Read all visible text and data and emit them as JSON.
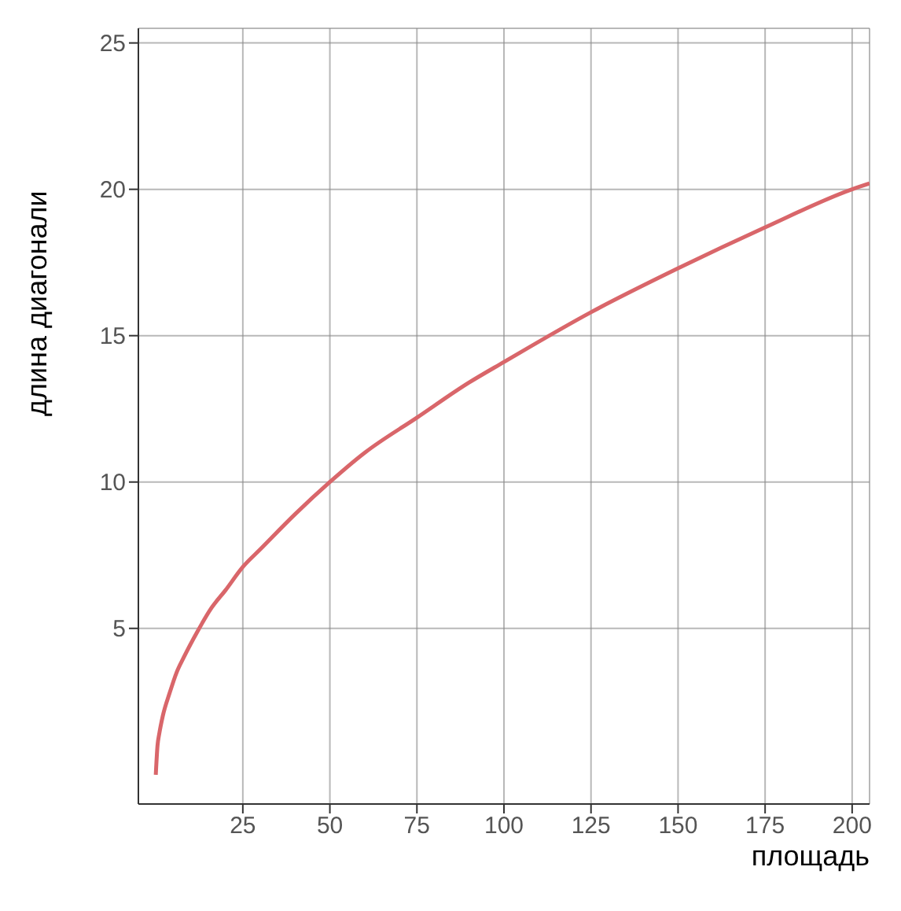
{
  "chart_data": {
    "type": "line",
    "xlabel": "площадь",
    "ylabel": "длина диагонали",
    "x": [
      0,
      0.5,
      1,
      2,
      4,
      6,
      8,
      12,
      16,
      20,
      25,
      30,
      40,
      50,
      60,
      75,
      90,
      100,
      125,
      150,
      175,
      200,
      205
    ],
    "series": [
      {
        "color": "#d9666a",
        "values": [
          0,
          1,
          1.4,
          2,
          2.8,
          3.5,
          4,
          4.9,
          5.7,
          6.3,
          7.1,
          7.7,
          8.9,
          10,
          11,
          12.2,
          13.4,
          14.1,
          15.8,
          17.3,
          18.7,
          20,
          20.2
        ]
      }
    ],
    "xlim": [
      -5,
      205
    ],
    "ylim": [
      -1,
      25.5
    ],
    "xticks": [
      25,
      50,
      75,
      100,
      125,
      150,
      175,
      200
    ],
    "yticks": [
      5,
      10,
      15,
      20,
      25
    ],
    "grid": true,
    "marker": "none",
    "line_style": "solid",
    "legend": false
  }
}
